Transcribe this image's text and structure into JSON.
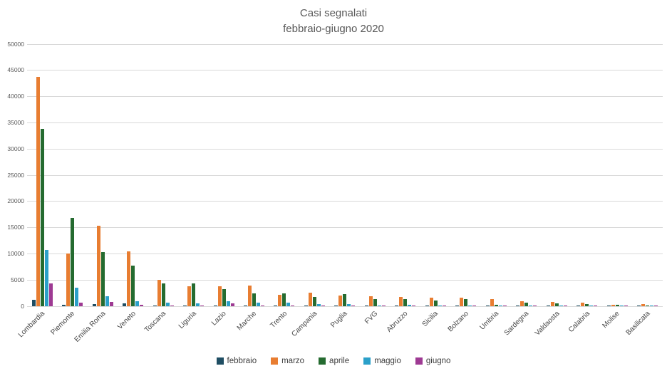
{
  "chart_data": {
    "type": "bar",
    "title": "Casi segnalati",
    "subtitle": "febbraio-giugno 2020",
    "categories": [
      "Lombardia",
      "Piemonte",
      "Emilia Roma",
      "Veneto",
      "Toscana",
      "Liguria",
      "Lazio",
      "Marche",
      "Trento",
      "Campania",
      "Puglia",
      "FVG",
      "Abruzzo",
      "Sicilia",
      "Bolzano",
      "Umbria",
      "Sardegna",
      "Valdaosta",
      "Calabria",
      "Molise",
      "Basilicata"
    ],
    "series": [
      {
        "name": "febbraio",
        "color": "#1F4E63",
        "values": [
          1200,
          250,
          400,
          500,
          150,
          120,
          150,
          150,
          60,
          120,
          60,
          60,
          60,
          60,
          50,
          30,
          30,
          20,
          20,
          10,
          10
        ]
      },
      {
        "name": "marzo",
        "color": "#E87D31",
        "values": [
          43800,
          10100,
          15300,
          10400,
          5000,
          3800,
          3800,
          4000,
          2200,
          2600,
          2000,
          1900,
          1800,
          1700,
          1600,
          1400,
          900,
          800,
          650,
          300,
          350
        ]
      },
      {
        "name": "aprile",
        "color": "#256B30",
        "values": [
          33900,
          16800,
          10300,
          7700,
          4300,
          4300,
          3200,
          2400,
          2400,
          1800,
          2300,
          1400,
          1300,
          1100,
          1350,
          250,
          700,
          550,
          450,
          250,
          120
        ]
      },
      {
        "name": "maggio",
        "color": "#2BA0C9",
        "values": [
          10700,
          3600,
          1900,
          1000,
          700,
          550,
          900,
          700,
          700,
          400,
          400,
          150,
          300,
          150,
          120,
          60,
          100,
          60,
          80,
          100,
          30
        ]
      },
      {
        "name": "giugno",
        "color": "#9E3A93",
        "values": [
          4300,
          700,
          750,
          300,
          200,
          150,
          500,
          150,
          100,
          150,
          100,
          50,
          60,
          50,
          50,
          20,
          20,
          10,
          10,
          10,
          10
        ]
      }
    ],
    "ylim": [
      0,
      50000
    ],
    "yticks": [
      0,
      5000,
      10000,
      15000,
      20000,
      25000,
      30000,
      35000,
      40000,
      45000,
      50000
    ],
    "grid": true,
    "legend_position": "bottom"
  }
}
